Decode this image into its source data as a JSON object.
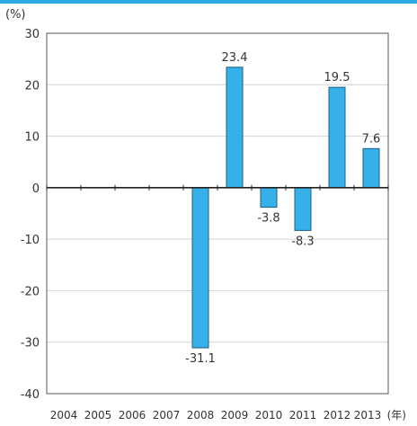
{
  "colors": {
    "bar": "#35B0E8",
    "bar_stroke": "#1C5F86",
    "top_rule": "#2EA8DF",
    "grid": "#d4d4d4",
    "axis": "#222222"
  },
  "chart_data": {
    "type": "bar",
    "y_unit": "(%)",
    "x_unit": "(年)",
    "categories": [
      "2004",
      "2005",
      "2006",
      "2007",
      "2008",
      "2009",
      "2010",
      "2011",
      "2012",
      "2013"
    ],
    "values": [
      null,
      null,
      null,
      null,
      -31.1,
      23.4,
      -3.8,
      -8.3,
      19.5,
      7.6
    ],
    "data_labels": [
      "",
      "",
      "",
      "",
      "-31.1",
      "23.4",
      "-3.8",
      "-8.3",
      "19.5",
      "7.6"
    ],
    "ylim": [
      -40,
      30
    ],
    "yticks": [
      30,
      20,
      10,
      0,
      -10,
      -20,
      -30,
      -40
    ],
    "grid": true,
    "legend": "none"
  }
}
